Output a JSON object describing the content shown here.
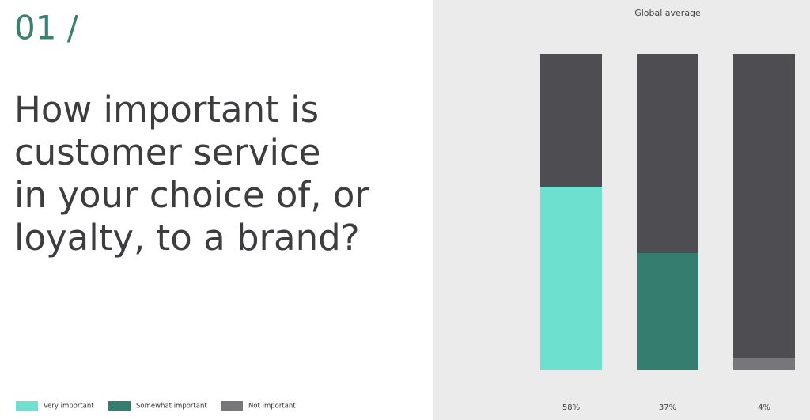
{
  "header": {
    "number": "01 /",
    "question": [
      "How important is",
      "customer service",
      "in your choice of, or",
      "loyalty, to a brand?"
    ]
  },
  "chart_data": {
    "type": "bar",
    "title": "Global average",
    "categories": [
      "Very important",
      "Somewhat important",
      "Not important"
    ],
    "values": [
      58,
      37,
      4
    ],
    "value_labels": [
      "58%",
      "37%",
      "4%"
    ],
    "colors": [
      "#6ee0cf",
      "#357d6f",
      "#77767b"
    ],
    "track_color": "#4e4d52",
    "ylim": [
      0,
      100
    ]
  }
}
